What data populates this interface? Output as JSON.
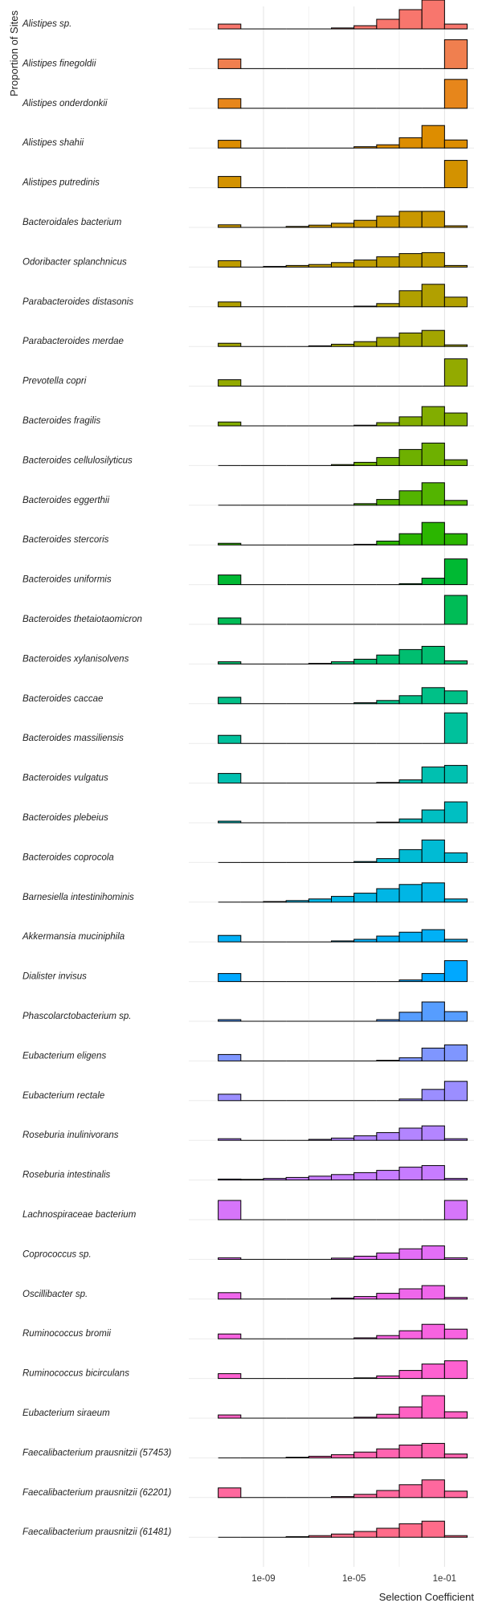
{
  "chart_data": {
    "type": "histogram-ridgeline",
    "title": "",
    "xlabel": "Selection Coefficient",
    "ylabel": "Proportion of Sites",
    "x_scale": "log10",
    "xlim_log10": [
      -12.3,
      0.3
    ],
    "x_ticks": [
      {
        "value_log10": -9,
        "label": "1e-09"
      },
      {
        "value_log10": -5,
        "label": "1e-05"
      },
      {
        "value_log10": -1,
        "label": "1e-01"
      }
    ],
    "grid": "vertical major gridlines",
    "legend": "none",
    "bin_edges_log10": [
      -11,
      -10,
      -9,
      -8,
      -7,
      -6,
      -5,
      -4,
      -3,
      -2,
      -1,
      0
    ],
    "series": [
      {
        "name": "Alistipes sp.",
        "color": "#F8766D",
        "values": [
          0.15,
          0,
          0,
          0,
          0,
          0.03,
          0.1,
          0.3,
          0.6,
          0.9,
          0.15
        ]
      },
      {
        "name": "Alistipes finegoldii",
        "color": "#F07F4F",
        "values": [
          0.3,
          0,
          0,
          0,
          0,
          0,
          0,
          0,
          0,
          0,
          0.9
        ]
      },
      {
        "name": "Alistipes onderdonkii",
        "color": "#E7861B",
        "values": [
          0.3,
          0,
          0,
          0,
          0,
          0,
          0,
          0,
          0,
          0,
          0.9
        ]
      },
      {
        "name": "Alistipes shahii",
        "color": "#DD8D00",
        "values": [
          0.24,
          0,
          0,
          0,
          0,
          0,
          0.04,
          0.1,
          0.32,
          0.7,
          0.25
        ]
      },
      {
        "name": "Alistipes putredinis",
        "color": "#D39200",
        "values": [
          0.35,
          0,
          0,
          0,
          0,
          0,
          0,
          0,
          0,
          0,
          0.85
        ]
      },
      {
        "name": "Bacteroidales bacterium",
        "color": "#C99800",
        "values": [
          0.08,
          0,
          0,
          0.03,
          0.07,
          0.13,
          0.22,
          0.35,
          0.5,
          0.5,
          0.05
        ]
      },
      {
        "name": "Odoribacter splanchnicus",
        "color": "#BE9C00",
        "values": [
          0.2,
          0,
          0.02,
          0.05,
          0.08,
          0.14,
          0.22,
          0.32,
          0.42,
          0.45,
          0.05
        ]
      },
      {
        "name": "Parabacteroides distasonis",
        "color": "#B1A000",
        "values": [
          0.15,
          0,
          0,
          0,
          0,
          0,
          0.02,
          0.1,
          0.5,
          0.7,
          0.3
        ]
      },
      {
        "name": "Parabacteroides merdae",
        "color": "#A3A500",
        "values": [
          0.1,
          0,
          0,
          0,
          0.02,
          0.07,
          0.15,
          0.28,
          0.42,
          0.5,
          0.05
        ]
      },
      {
        "name": "Prevotella copri",
        "color": "#93AA00",
        "values": [
          0.2,
          0,
          0,
          0,
          0,
          0,
          0,
          0,
          0,
          0,
          0.85
        ]
      },
      {
        "name": "Bacteroides fragilis",
        "color": "#82AD00",
        "values": [
          0.12,
          0,
          0,
          0,
          0,
          0,
          0.02,
          0.1,
          0.28,
          0.6,
          0.4
        ]
      },
      {
        "name": "Bacteroides cellulosilyticus",
        "color": "#6EB000",
        "values": [
          0,
          0,
          0,
          0,
          0,
          0.03,
          0.1,
          0.25,
          0.5,
          0.7,
          0.18
        ]
      },
      {
        "name": "Bacteroides eggerthii",
        "color": "#53B400",
        "values": [
          0,
          0,
          0,
          0,
          0,
          0,
          0.05,
          0.18,
          0.45,
          0.7,
          0.15
        ]
      },
      {
        "name": "Bacteroides stercoris",
        "color": "#2BB600",
        "values": [
          0.05,
          0,
          0,
          0,
          0,
          0,
          0.02,
          0.12,
          0.35,
          0.7,
          0.35
        ]
      },
      {
        "name": "Bacteroides uniformis",
        "color": "#00B933",
        "values": [
          0.3,
          0,
          0,
          0,
          0,
          0,
          0,
          0,
          0.03,
          0.2,
          0.8
        ]
      },
      {
        "name": "Bacteroides thetaiotaomicron",
        "color": "#00BC56",
        "values": [
          0.2,
          0,
          0,
          0,
          0,
          0,
          0,
          0,
          0,
          0,
          0.9
        ]
      },
      {
        "name": "Bacteroides xylanisolvens",
        "color": "#00BE70",
        "values": [
          0.07,
          0,
          0,
          0,
          0.02,
          0.07,
          0.15,
          0.28,
          0.45,
          0.55,
          0.1
        ]
      },
      {
        "name": "Bacteroides caccae",
        "color": "#00C087",
        "values": [
          0.2,
          0,
          0,
          0,
          0,
          0,
          0.03,
          0.1,
          0.25,
          0.5,
          0.4
        ]
      },
      {
        "name": "Bacteroides massiliensis",
        "color": "#00C19C",
        "values": [
          0.25,
          0,
          0,
          0,
          0,
          0,
          0,
          0,
          0,
          0,
          0.95
        ]
      },
      {
        "name": "Bacteroides vulgatus",
        "color": "#00C0B0",
        "values": [
          0.3,
          0,
          0,
          0,
          0,
          0,
          0,
          0.02,
          0.1,
          0.5,
          0.55
        ]
      },
      {
        "name": "Bacteroides plebeius",
        "color": "#00BFC2",
        "values": [
          0.05,
          0,
          0,
          0,
          0,
          0,
          0,
          0.02,
          0.12,
          0.4,
          0.65
        ]
      },
      {
        "name": "Bacteroides coprocola",
        "color": "#00BBD4",
        "values": [
          0,
          0,
          0,
          0,
          0,
          0,
          0.03,
          0.12,
          0.4,
          0.7,
          0.3
        ]
      },
      {
        "name": "Barnesiella intestinihominis",
        "color": "#00B6E5",
        "values": [
          0,
          0,
          0.02,
          0.05,
          0.1,
          0.18,
          0.28,
          0.42,
          0.55,
          0.6,
          0.1
        ]
      },
      {
        "name": "Akkermansia muciniphila",
        "color": "#00B0F6",
        "values": [
          0.2,
          0,
          0,
          0,
          0,
          0.03,
          0.08,
          0.18,
          0.3,
          0.38,
          0.08
        ]
      },
      {
        "name": "Dialister invisus",
        "color": "#00A8FF",
        "values": [
          0.25,
          0,
          0,
          0,
          0,
          0,
          0,
          0,
          0.05,
          0.25,
          0.65
        ]
      },
      {
        "name": "Phascolarctobacterium sp.",
        "color": "#569DFF",
        "values": [
          0.05,
          0,
          0,
          0,
          0,
          0,
          0,
          0.05,
          0.28,
          0.6,
          0.3
        ]
      },
      {
        "name": "Eubacterium eligens",
        "color": "#7F96FF",
        "values": [
          0.2,
          0,
          0,
          0,
          0,
          0,
          0,
          0.02,
          0.1,
          0.4,
          0.5
        ]
      },
      {
        "name": "Eubacterium rectale",
        "color": "#9B8EFF",
        "values": [
          0.2,
          0,
          0,
          0,
          0,
          0,
          0,
          0,
          0.05,
          0.35,
          0.6
        ]
      },
      {
        "name": "Roseburia inulinivorans",
        "color": "#B385FF",
        "values": [
          0.05,
          0,
          0,
          0,
          0.03,
          0.07,
          0.14,
          0.24,
          0.38,
          0.45,
          0.05
        ]
      },
      {
        "name": "Roseburia intestinalis",
        "color": "#C77CFF",
        "values": [
          0.03,
          0.02,
          0.05,
          0.08,
          0.12,
          0.17,
          0.23,
          0.3,
          0.4,
          0.45,
          0.05
        ]
      },
      {
        "name": "Lachnospiraceae bacterium",
        "color": "#D675FA",
        "values": [
          0.6,
          0,
          0,
          0,
          0,
          0,
          0,
          0,
          0,
          0,
          0.6
        ]
      },
      {
        "name": "Coprococcus sp.",
        "color": "#E36EF6",
        "values": [
          0.05,
          0,
          0,
          0,
          0,
          0.04,
          0.1,
          0.2,
          0.33,
          0.42,
          0.05
        ]
      },
      {
        "name": "Oscillibacter sp.",
        "color": "#EF67EB",
        "values": [
          0.2,
          0,
          0,
          0,
          0,
          0.03,
          0.08,
          0.18,
          0.32,
          0.42,
          0.05
        ]
      },
      {
        "name": "Ruminococcus bromii",
        "color": "#F763E0",
        "values": [
          0.15,
          0,
          0,
          0,
          0,
          0,
          0.03,
          0.1,
          0.25,
          0.45,
          0.3
        ]
      },
      {
        "name": "Ruminococcus bicirculans",
        "color": "#FD61D1",
        "values": [
          0.15,
          0,
          0,
          0,
          0,
          0,
          0.02,
          0.08,
          0.25,
          0.45,
          0.55
        ]
      },
      {
        "name": "Eubacterium siraeum",
        "color": "#FF61C3",
        "values": [
          0.1,
          0,
          0,
          0,
          0,
          0,
          0.03,
          0.12,
          0.35,
          0.7,
          0.2
        ]
      },
      {
        "name": "Faecalibacterium prausnitzii (57453)",
        "color": "#FF64B0",
        "values": [
          0,
          0,
          0,
          0.02,
          0.05,
          0.1,
          0.18,
          0.28,
          0.4,
          0.45,
          0.12
        ]
      },
      {
        "name": "Faecalibacterium prausnitzii (62201)",
        "color": "#FF689E",
        "values": [
          0.3,
          0,
          0,
          0,
          0,
          0.03,
          0.1,
          0.22,
          0.4,
          0.55,
          0.2
        ]
      },
      {
        "name": "Faecalibacterium prausnitzii (61481)",
        "color": "#FF6C8A",
        "values": [
          0,
          0,
          0,
          0.02,
          0.05,
          0.1,
          0.18,
          0.28,
          0.42,
          0.5,
          0.05
        ]
      }
    ]
  }
}
